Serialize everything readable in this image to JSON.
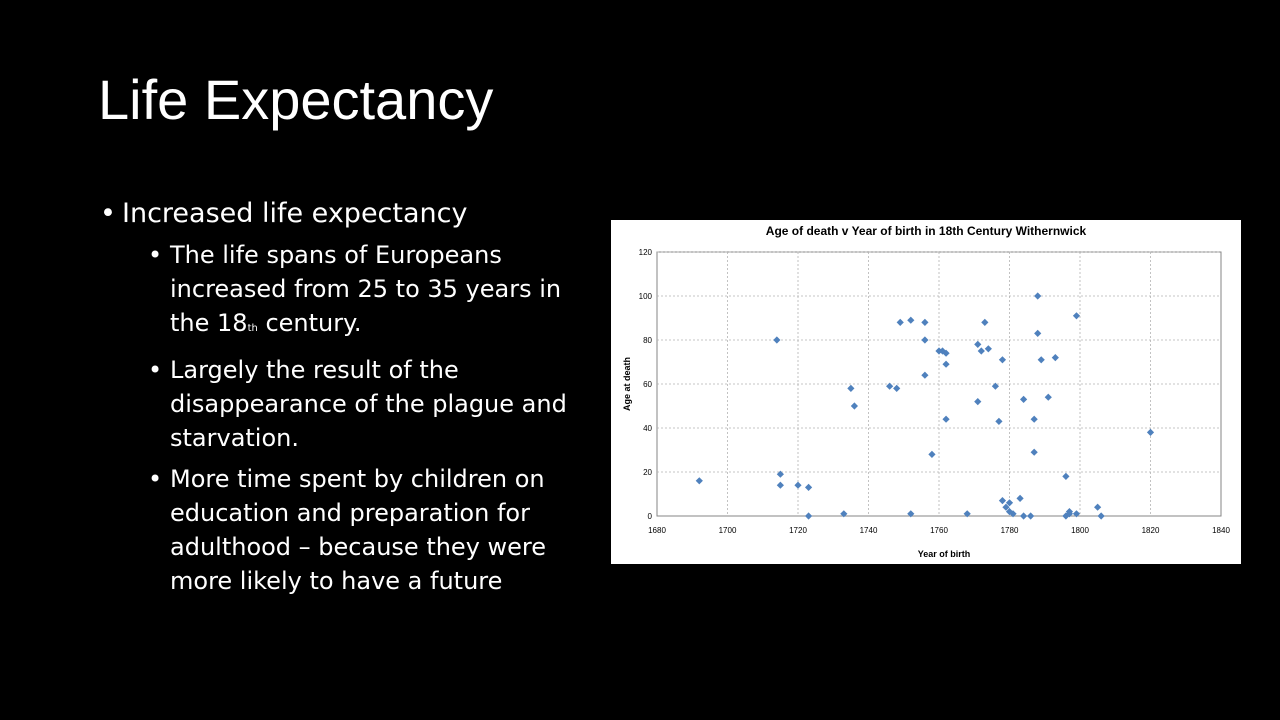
{
  "slide": {
    "title": "Life Expectancy",
    "bullet_main": "Increased life expectancy",
    "sub_bullets": [
      {
        "text_before": "The life spans of Europeans increased from 25 to 35 years in the 18",
        "superscript": "th",
        "text_after": " century."
      },
      {
        "text": "Largely the result of the disappearance of the plague and starvation."
      },
      {
        "text": "More time spent by children on education and preparation for adulthood – because they were more likely to have a future"
      }
    ]
  },
  "chart_data": {
    "type": "scatter",
    "title": "Age of death v Year of birth in 18th Century Withernwick",
    "xlabel": "Year of birth",
    "ylabel": "Age at death",
    "xlim": [
      1680,
      1840
    ],
    "ylim": [
      0,
      120
    ],
    "xticks": [
      1680,
      1700,
      1720,
      1740,
      1760,
      1780,
      1800,
      1820,
      1840
    ],
    "yticks": [
      0,
      20,
      40,
      60,
      80,
      100,
      120
    ],
    "grid": true,
    "marker_color": "#4f81bd",
    "points": [
      [
        1692,
        16
      ],
      [
        1714,
        80
      ],
      [
        1715,
        19
      ],
      [
        1715,
        14
      ],
      [
        1720,
        14
      ],
      [
        1723,
        13
      ],
      [
        1723,
        0
      ],
      [
        1733,
        1
      ],
      [
        1735,
        58
      ],
      [
        1736,
        50
      ],
      [
        1746,
        59
      ],
      [
        1748,
        58
      ],
      [
        1749,
        88
      ],
      [
        1752,
        89
      ],
      [
        1752,
        1
      ],
      [
        1756,
        88
      ],
      [
        1756,
        80
      ],
      [
        1756,
        64
      ],
      [
        1758,
        28
      ],
      [
        1760,
        75
      ],
      [
        1761,
        75
      ],
      [
        1762,
        74
      ],
      [
        1762,
        69
      ],
      [
        1762,
        44
      ],
      [
        1768,
        1
      ],
      [
        1771,
        78
      ],
      [
        1771,
        52
      ],
      [
        1772,
        75
      ],
      [
        1773,
        88
      ],
      [
        1774,
        76
      ],
      [
        1776,
        59
      ],
      [
        1777,
        43
      ],
      [
        1778,
        71
      ],
      [
        1778,
        7
      ],
      [
        1779,
        4
      ],
      [
        1780,
        6
      ],
      [
        1780,
        2
      ],
      [
        1781,
        1
      ],
      [
        1783,
        8
      ],
      [
        1784,
        53
      ],
      [
        1784,
        0
      ],
      [
        1786,
        0
      ],
      [
        1787,
        44
      ],
      [
        1787,
        29
      ],
      [
        1788,
        100
      ],
      [
        1788,
        83
      ],
      [
        1789,
        71
      ],
      [
        1791,
        54
      ],
      [
        1793,
        72
      ],
      [
        1796,
        18
      ],
      [
        1796,
        0
      ],
      [
        1797,
        2
      ],
      [
        1797,
        1
      ],
      [
        1799,
        91
      ],
      [
        1799,
        1
      ],
      [
        1805,
        4
      ],
      [
        1806,
        0
      ],
      [
        1820,
        38
      ]
    ]
  }
}
